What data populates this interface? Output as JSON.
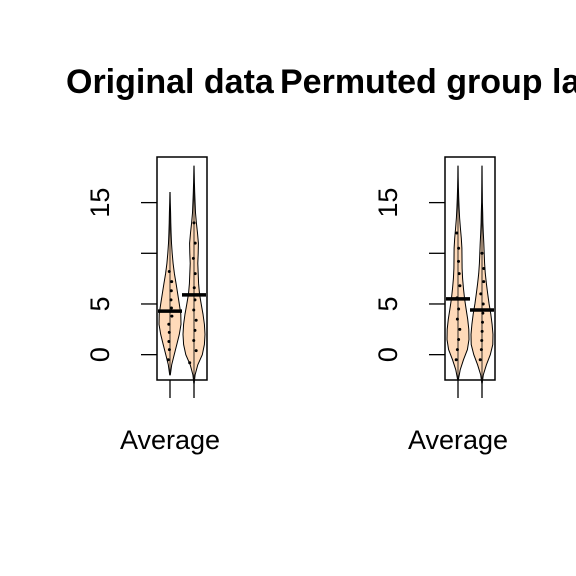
{
  "chart_data": [
    {
      "type": "violin",
      "title": "Original data",
      "xlabel": "Average",
      "ylabel": "",
      "ylim": [
        -2.5,
        19.5
      ],
      "yticks": [
        0,
        5,
        15
      ],
      "ytick_labels": [
        "0",
        "5",
        "15"
      ],
      "violin_fill": "#FFDAB9",
      "series": [
        {
          "min": -2.0,
          "max": 16.0,
          "mean": 4.3,
          "density": [
            [
              -2.0,
              0.03
            ],
            [
              -1.0,
              0.15
            ],
            [
              0.0,
              0.38
            ],
            [
              1.0,
              0.62
            ],
            [
              2.0,
              0.85
            ],
            [
              3.0,
              1.0
            ],
            [
              4.0,
              0.98
            ],
            [
              5.0,
              0.85
            ],
            [
              6.0,
              0.7
            ],
            [
              7.0,
              0.55
            ],
            [
              8.0,
              0.4
            ],
            [
              9.0,
              0.28
            ],
            [
              10.0,
              0.2
            ],
            [
              11.0,
              0.14
            ],
            [
              12.0,
              0.1
            ],
            [
              13.0,
              0.07
            ],
            [
              14.0,
              0.05
            ],
            [
              15.0,
              0.03
            ],
            [
              16.0,
              0.01
            ]
          ],
          "points": [
            -0.5,
            0.5,
            1.3,
            2.2,
            3.0,
            3.8,
            4.6,
            5.4,
            6.3,
            7.2,
            8.2
          ]
        },
        {
          "min": -2.8,
          "max": 18.6,
          "mean": 5.9,
          "density": [
            [
              -2.8,
              0.02
            ],
            [
              -2.0,
              0.1
            ],
            [
              -1.0,
              0.35
            ],
            [
              0.0,
              0.75
            ],
            [
              1.0,
              0.95
            ],
            [
              2.0,
              1.0
            ],
            [
              3.0,
              0.95
            ],
            [
              4.0,
              0.82
            ],
            [
              5.0,
              0.65
            ],
            [
              6.0,
              0.5
            ],
            [
              7.0,
              0.42
            ],
            [
              8.0,
              0.38
            ],
            [
              9.0,
              0.35
            ],
            [
              10.0,
              0.38
            ],
            [
              11.0,
              0.4
            ],
            [
              12.0,
              0.32
            ],
            [
              13.0,
              0.22
            ],
            [
              14.0,
              0.14
            ],
            [
              15.0,
              0.1
            ],
            [
              16.0,
              0.06
            ],
            [
              17.0,
              0.04
            ],
            [
              18.0,
              0.02
            ],
            [
              18.6,
              0.01
            ]
          ],
          "points": [
            -0.8,
            0.4,
            1.4,
            2.4,
            3.4,
            4.4,
            5.4,
            6.6,
            8.0,
            9.5,
            11.0,
            13.0
          ]
        }
      ]
    },
    {
      "type": "violin",
      "title": "Permuted group labels",
      "xlabel": "Average",
      "ylabel": "",
      "ylim": [
        -2.5,
        19.5
      ],
      "yticks": [
        0,
        5,
        15
      ],
      "ytick_labels": [
        "0",
        "5",
        "15"
      ],
      "violin_fill": "#FFDAB9",
      "series": [
        {
          "min": -2.5,
          "max": 18.6,
          "mean": 5.5,
          "density": [
            [
              -2.5,
              0.03
            ],
            [
              -1.5,
              0.2
            ],
            [
              -0.5,
              0.5
            ],
            [
              0.5,
              0.85
            ],
            [
              1.5,
              1.0
            ],
            [
              2.5,
              0.98
            ],
            [
              3.5,
              0.88
            ],
            [
              4.5,
              0.74
            ],
            [
              5.5,
              0.6
            ],
            [
              6.5,
              0.5
            ],
            [
              7.5,
              0.42
            ],
            [
              8.5,
              0.37
            ],
            [
              9.5,
              0.36
            ],
            [
              10.5,
              0.35
            ],
            [
              11.5,
              0.3
            ],
            [
              12.5,
              0.22
            ],
            [
              13.5,
              0.15
            ],
            [
              14.5,
              0.1
            ],
            [
              15.5,
              0.06
            ],
            [
              16.5,
              0.04
            ],
            [
              17.5,
              0.02
            ],
            [
              18.6,
              0.01
            ]
          ],
          "points": [
            -0.5,
            0.5,
            1.5,
            2.5,
            3.5,
            4.5,
            5.6,
            6.8,
            8.0,
            9.2,
            10.5,
            12.0
          ]
        },
        {
          "min": -2.8,
          "max": 18.6,
          "mean": 4.4,
          "density": [
            [
              -2.8,
              0.02
            ],
            [
              -2.0,
              0.12
            ],
            [
              -1.0,
              0.4
            ],
            [
              0.0,
              0.75
            ],
            [
              1.0,
              0.98
            ],
            [
              2.0,
              1.0
            ],
            [
              3.0,
              0.92
            ],
            [
              4.0,
              0.8
            ],
            [
              5.0,
              0.65
            ],
            [
              6.0,
              0.52
            ],
            [
              7.0,
              0.4
            ],
            [
              8.0,
              0.3
            ],
            [
              9.0,
              0.24
            ],
            [
              10.0,
              0.2
            ],
            [
              11.0,
              0.16
            ],
            [
              12.0,
              0.12
            ],
            [
              13.0,
              0.08
            ],
            [
              14.0,
              0.06
            ],
            [
              15.0,
              0.04
            ],
            [
              16.0,
              0.03
            ],
            [
              17.0,
              0.02
            ],
            [
              18.6,
              0.01
            ]
          ],
          "points": [
            -0.5,
            0.5,
            1.4,
            2.3,
            3.2,
            4.1,
            5.0,
            6.0,
            7.2,
            8.5,
            10.0
          ]
        }
      ]
    }
  ]
}
